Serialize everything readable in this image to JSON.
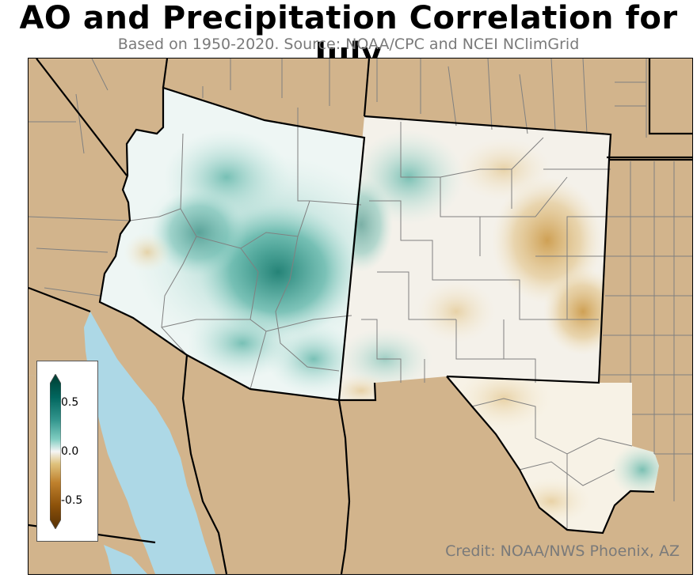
{
  "header": {
    "title": "AO and Precipitation Correlation for July",
    "subtitle": "Based on 1950-2020. Source: NOAA/CPC and NCEI NClimGrid"
  },
  "map": {
    "credit": "Credit: NOAA/NWS Phoenix, AZ",
    "colors": {
      "land": "#d2b48c",
      "water": "#add8e6",
      "state_border": "#000000",
      "county_border": "#808080"
    },
    "colormap": "BrBG"
  },
  "colorbar": {
    "ticks": [
      "0.5",
      "0.0",
      "-0.5"
    ],
    "range": [
      -0.8,
      0.8
    ]
  }
}
